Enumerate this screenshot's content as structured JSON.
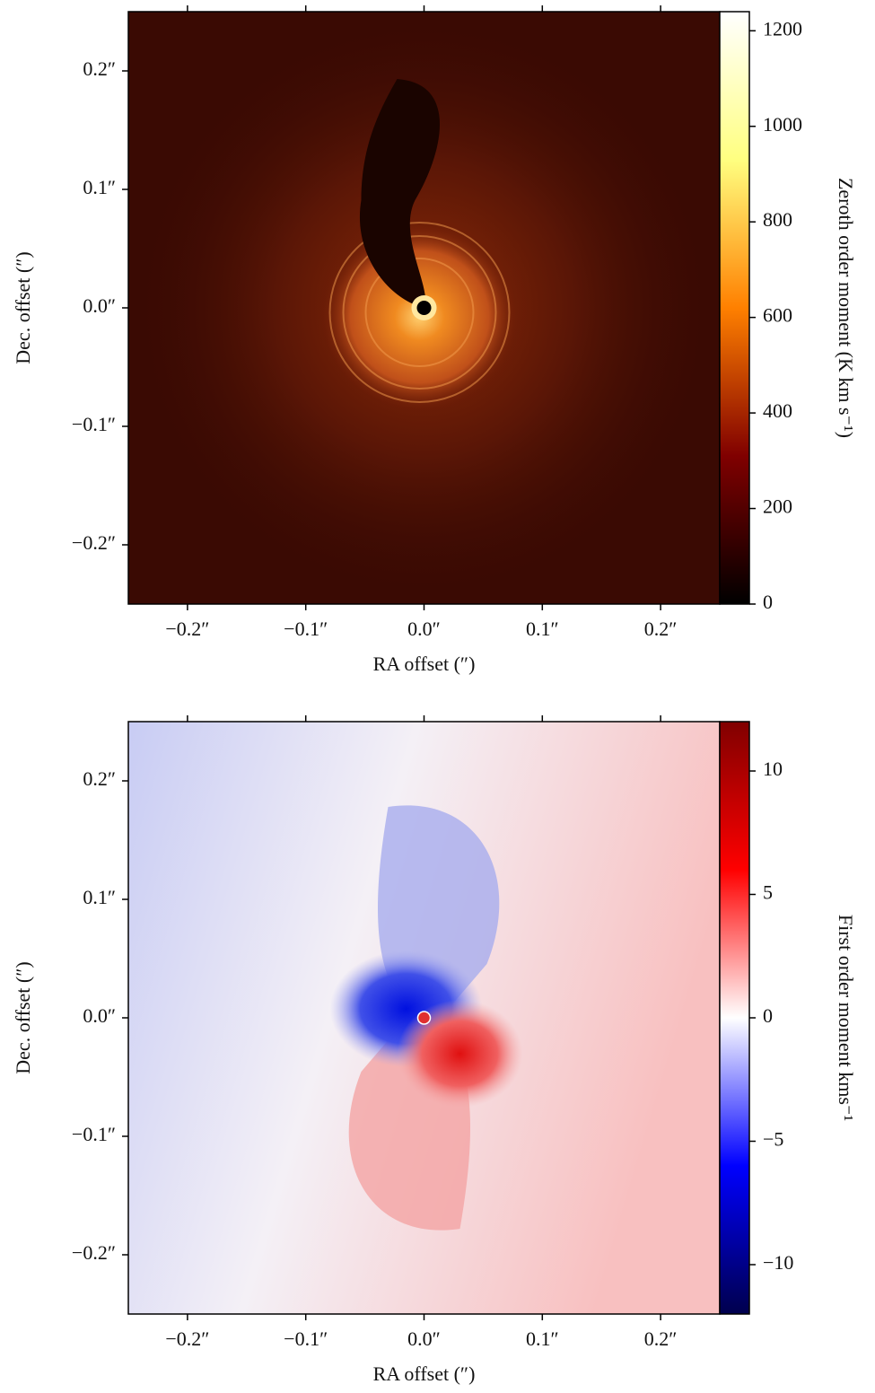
{
  "chart_data": [
    {
      "type": "image",
      "xlabel": "RA offset (″)",
      "ylabel": "Dec. offset (″)",
      "xlim": [
        -0.25,
        0.25
      ],
      "ylim": [
        -0.25,
        0.25
      ],
      "xticks": [
        {
          "value": -0.2,
          "label": "−0.2″"
        },
        {
          "value": -0.1,
          "label": "−0.1″"
        },
        {
          "value": 0.0,
          "label": "0.0″"
        },
        {
          "value": 0.1,
          "label": "0.1″"
        },
        {
          "value": 0.2,
          "label": "0.2″"
        }
      ],
      "yticks": [
        {
          "value": -0.2,
          "label": "−0.2″"
        },
        {
          "value": -0.1,
          "label": "−0.1″"
        },
        {
          "value": 0.0,
          "label": "0.0″"
        },
        {
          "value": 0.1,
          "label": "0.1″"
        },
        {
          "value": 0.2,
          "label": "0.2″"
        }
      ],
      "colorbar": {
        "label": "Zeroth order moment (K km s⁻¹)",
        "clim": [
          0,
          1240
        ],
        "ticks": [
          0,
          200,
          400,
          600,
          800,
          1000,
          1200
        ],
        "colormap": "afmhot"
      }
    },
    {
      "type": "image",
      "xlabel": "RA offset (″)",
      "ylabel": "Dec. offset (″)",
      "xlim": [
        -0.25,
        0.25
      ],
      "ylim": [
        -0.25,
        0.25
      ],
      "xticks": [
        {
          "value": -0.2,
          "label": "−0.2″"
        },
        {
          "value": -0.1,
          "label": "−0.1″"
        },
        {
          "value": 0.0,
          "label": "0.0″"
        },
        {
          "value": 0.1,
          "label": "0.1″"
        },
        {
          "value": 0.2,
          "label": "0.2″"
        }
      ],
      "yticks": [
        {
          "value": -0.2,
          "label": "−0.2″"
        },
        {
          "value": -0.1,
          "label": "−0.1″"
        },
        {
          "value": 0.0,
          "label": "0.0″"
        },
        {
          "value": 0.1,
          "label": "0.1″"
        },
        {
          "value": 0.2,
          "label": "0.2″"
        }
      ],
      "colorbar": {
        "label": "First order moment kms⁻¹",
        "clim": [
          -12,
          12
        ],
        "ticks": [
          {
            "value": -10,
            "label": "−10"
          },
          {
            "value": -5,
            "label": "−5"
          },
          0,
          5,
          10
        ],
        "colormap": "seismic"
      }
    }
  ]
}
